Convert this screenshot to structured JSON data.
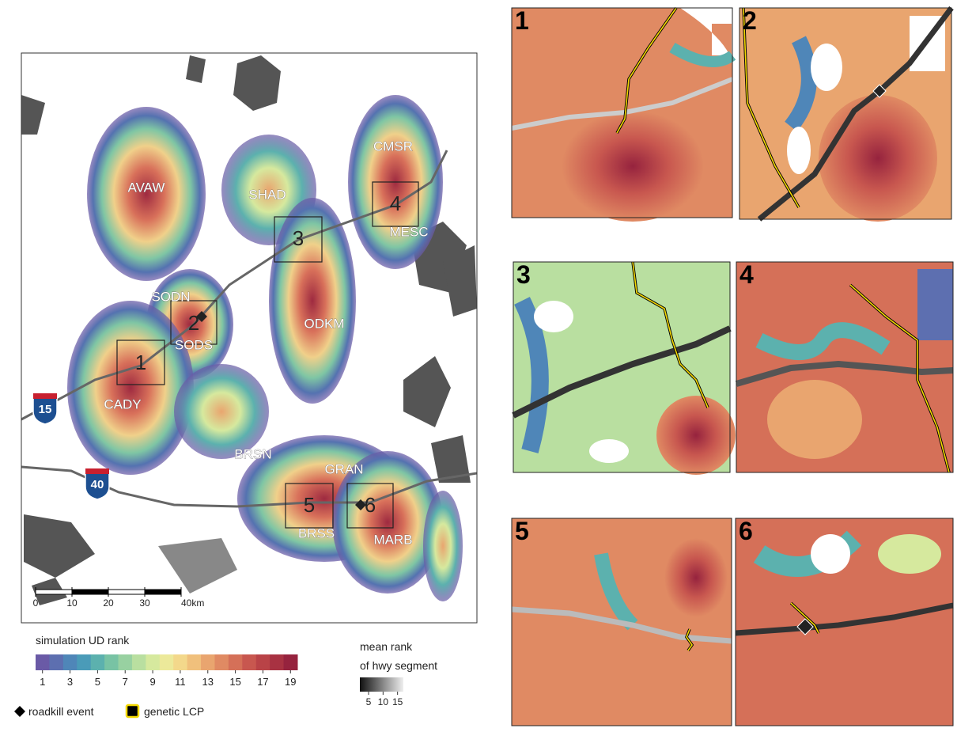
{
  "map": {
    "site_labels": [
      "AVAW",
      "SHAD",
      "CMSR",
      "MESC",
      "SODN",
      "SODS",
      "ODKM",
      "CADY",
      "BRSN",
      "GRAN",
      "BRSS",
      "MARB"
    ],
    "box_labels": [
      "1",
      "2",
      "3",
      "4",
      "5",
      "6"
    ],
    "shields": [
      "15",
      "40"
    ],
    "scale_bar": {
      "ticks": [
        0,
        10,
        20,
        30,
        {
          "value": 40,
          "label": "40km"
        }
      ],
      "lim": [
        0,
        40
      ]
    }
  },
  "panels": [
    "1",
    "2",
    "3",
    "4",
    "5",
    "6"
  ],
  "legend": {
    "ud": {
      "title": "simulation UD rank",
      "ticks": [
        1,
        3,
        5,
        7,
        9,
        11,
        13,
        15,
        17,
        19
      ],
      "colors": [
        "#6a5aa6",
        "#5d6fb0",
        "#4f86b8",
        "#4a9bb8",
        "#5cb1ae",
        "#78c3a4",
        "#98d1a1",
        "#b9dfa0",
        "#d6e99e",
        "#ece99a",
        "#f3d88b",
        "#f0c07c",
        "#e9a56f",
        "#e08a63",
        "#d57058",
        "#c8574f",
        "#b94347",
        "#a83242",
        "#96233e"
      ]
    },
    "hwy": {
      "title_lines": [
        "mean rank",
        "of hwy segment"
      ],
      "ticks": [
        5,
        10,
        15
      ],
      "lim": [
        2,
        17
      ]
    },
    "roadkill": "roadkill event",
    "lcp": "genetic LCP"
  }
}
